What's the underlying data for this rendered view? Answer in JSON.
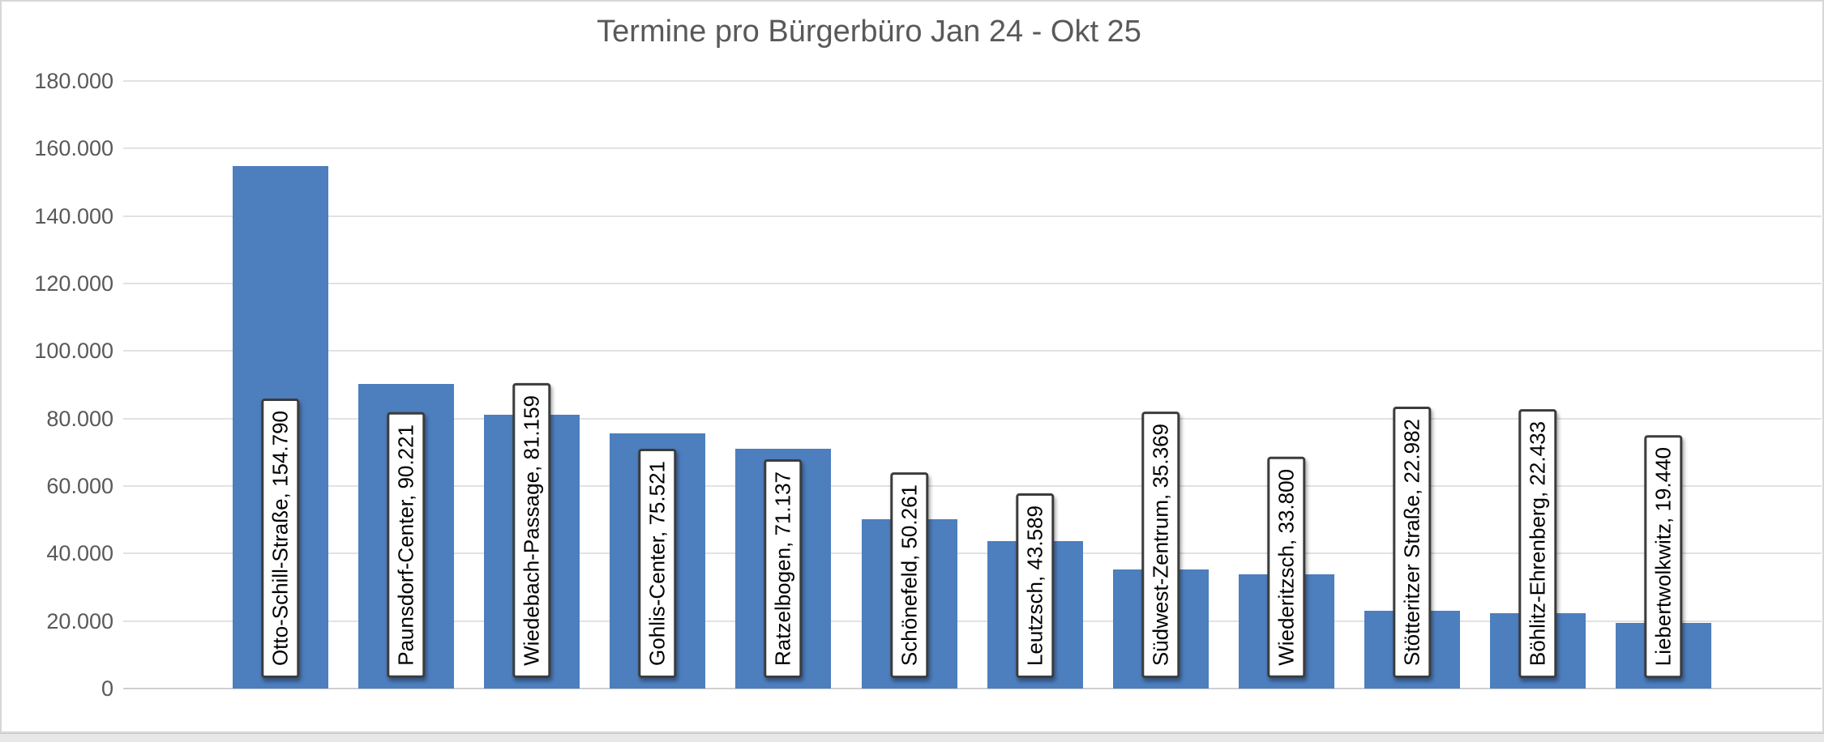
{
  "chart_data": {
    "type": "bar",
    "title": "Termine pro Bürgerbüro Jan 24 - Okt 25",
    "categories": [
      "Otto-Schill-Straße",
      "Paunsdorf-Center",
      "Wiedebach-Passage",
      "Gohlis-Center",
      "Ratzelbogen",
      "Schönefeld",
      "Leutzsch",
      "Südwest-Zentrum",
      "Wiederitzsch",
      "Stötteritzer Straße",
      "Böhlitz-Ehrenberg",
      "Liebertwolkwitz"
    ],
    "values": [
      154790,
      90221,
      81159,
      75521,
      71137,
      50261,
      43589,
      35369,
      33800,
      22982,
      22433,
      19440
    ],
    "data_labels": [
      "Otto-Schill-Straße, 154.790",
      "Paunsdorf-Center, 90.221",
      "Wiedebach-Passage, 81.159",
      "Gohlis-Center, 75.521",
      "Ratzelbogen, 71.137",
      "Schönefeld, 50.261",
      "Leutzsch, 43.589",
      "Südwest-Zentrum, 35.369",
      "Wiederitzsch, 33.800",
      "Stötteritzer Straße, 22.982",
      "Böhlitz-Ehrenberg, 22.433",
      "Liebertwolkwitz, 19.440"
    ],
    "xlabel": "",
    "ylabel": "",
    "ylim": [
      0,
      180000
    ],
    "ytick_interval": 20000,
    "ytick_labels": [
      "0",
      "20.000",
      "40.000",
      "60.000",
      "80.000",
      "100.000",
      "120.000",
      "140.000",
      "160.000",
      "180.000"
    ],
    "grid": true,
    "legend": "none",
    "bar_color": "#4d7ebe",
    "title_color": "#595959",
    "axis_text_color": "#595959",
    "gridline_color": "#e2e2e2",
    "axis_line_color": "#cfcfcf",
    "data_label_style": {
      "fill": "#ffffff",
      "border": "#3c3c3c",
      "text": "#000000"
    }
  }
}
